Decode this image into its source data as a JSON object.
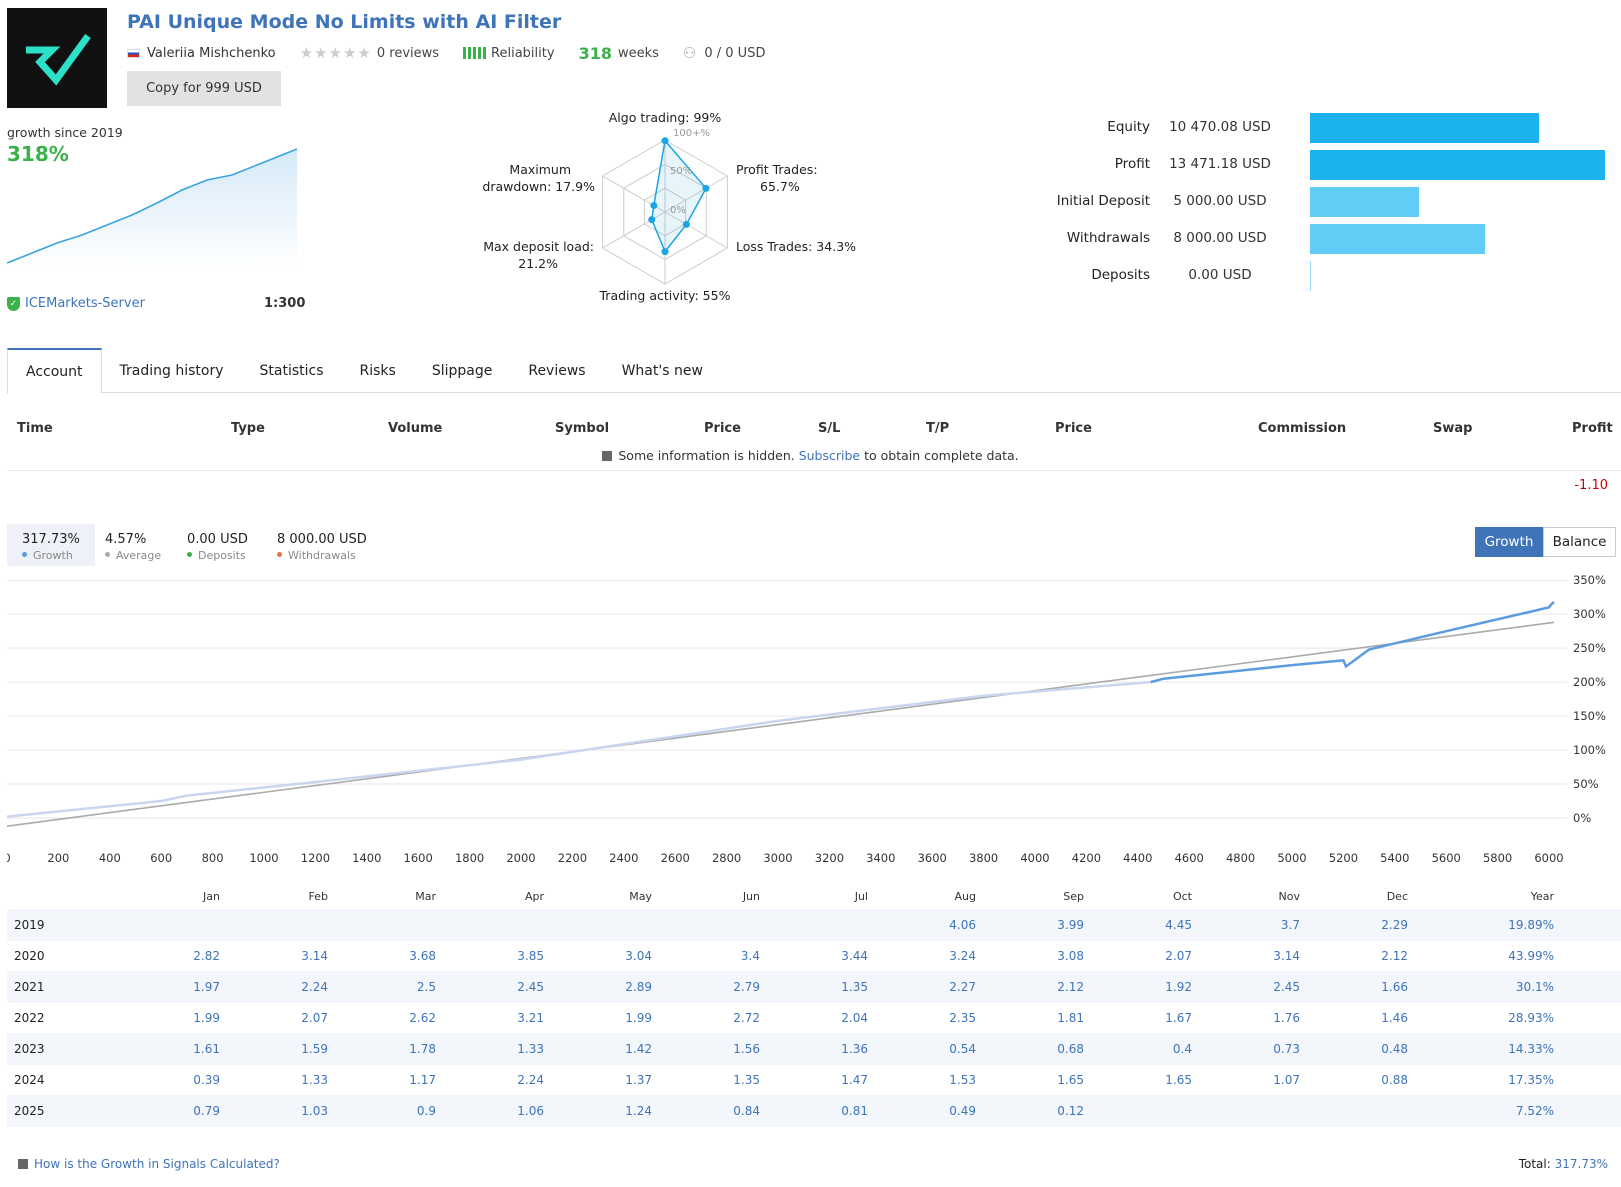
{
  "header": {
    "title": "PAI Unique Mode No Limits with AI Filter",
    "author": "Valeriia Mishchenko",
    "reviews": "0 reviews",
    "reliability": "Reliability",
    "weeks_num": "318",
    "weeks_label": "weeks",
    "subscribers": "0 / 0 USD",
    "copy_button": "Copy for 999 USD"
  },
  "growth_summary": {
    "label": "growth since 2019",
    "value": "318%",
    "server": "ICEMarkets-Server",
    "leverage": "1:300"
  },
  "radar": {
    "labels": {
      "algo": "Algo trading: 99%",
      "profit_1": "Profit Trades:",
      "profit_2": "65.7%",
      "loss": "Loss Trades: 34.3%",
      "activity": "Trading activity: 55%",
      "load_1": "Max deposit load:",
      "load_2": "21.2%",
      "dd_1": "Maximum",
      "dd_2": "drawdown: 17.9%"
    },
    "ticks": [
      "100+%",
      "50%",
      "0%"
    ],
    "values": [
      99,
      65.7,
      34.3,
      55,
      21.2,
      17.9
    ]
  },
  "stats": [
    {
      "label": "Equity",
      "value": "10 470.08 USD",
      "amount": 10470.08,
      "color": "#1ab2ef"
    },
    {
      "label": "Profit",
      "value": "13 471.18 USD",
      "amount": 13471.18,
      "color": "#1ab2ef"
    },
    {
      "label": "Initial Deposit",
      "value": "5 000.00 USD",
      "amount": 5000,
      "color": "#5fcdf5"
    },
    {
      "label": "Withdrawals",
      "value": "8 000.00 USD",
      "amount": 8000,
      "color": "#5fcdf5"
    },
    {
      "label": "Deposits",
      "value": "0.00 USD",
      "amount": 0,
      "color": "#5fcdf5"
    }
  ],
  "tabs": [
    "Account",
    "Trading history",
    "Statistics",
    "Risks",
    "Slippage",
    "Reviews",
    "What's new"
  ],
  "trades_table": {
    "headers": [
      "Time",
      "Type",
      "Volume",
      "Symbol",
      "Price",
      "S/L",
      "T/P",
      "Price",
      "Commission",
      "Swap",
      "Profit"
    ],
    "hidden_note_pre": "Some information is hidden.",
    "hidden_note_link": "Subscribe",
    "hidden_note_post": "to obtain complete data.",
    "profit_value": "-1.10"
  },
  "legend": [
    {
      "value": "317.73%",
      "label": "Growth",
      "color": "#5b9be0"
    },
    {
      "value": "4.57%",
      "label": "Average",
      "color": "#aaaaaa"
    },
    {
      "value": "0.00 USD",
      "label": "Deposits",
      "color": "#3bb14a"
    },
    {
      "value": "8 000.00 USD",
      "label": "Withdrawals",
      "color": "#e8704a"
    }
  ],
  "chart_toggle": {
    "growth": "Growth",
    "balance": "Balance"
  },
  "chart_data": {
    "type": "line",
    "x_ticks": [
      "0",
      "200",
      "400",
      "600",
      "800",
      "1000",
      "1200",
      "1400",
      "1600",
      "1800",
      "2000",
      "2200",
      "2400",
      "2600",
      "2800",
      "3000",
      "3200",
      "3400",
      "3600",
      "3800",
      "4000",
      "4200",
      "4400",
      "4600",
      "4800",
      "5000",
      "5200",
      "5400",
      "5600",
      "5800",
      "6000"
    ],
    "y_ticks": [
      "350%",
      "300%",
      "250%",
      "200%",
      "150%",
      "100%",
      "50%",
      "0%"
    ],
    "xlim": [
      0,
      6070
    ],
    "ylim": [
      -25,
      365
    ],
    "series": [
      {
        "name": "Growth",
        "x": [
          0,
          600,
          700,
          1200,
          2000,
          3000,
          3800,
          4450,
          4500,
          5000,
          5200,
          5210,
          5300,
          5600,
          6000,
          6010,
          6020
        ],
        "y": [
          2,
          25,
          33,
          53,
          86,
          143,
          180,
          200,
          205,
          225,
          232,
          223,
          248,
          275,
          310,
          315,
          318
        ]
      },
      {
        "name": "Average",
        "x": [
          0,
          6020
        ],
        "y": [
          -12,
          288
        ]
      }
    ]
  },
  "monthly": {
    "headers": [
      "Jan",
      "Feb",
      "Mar",
      "Apr",
      "May",
      "Jun",
      "Jul",
      "Aug",
      "Sep",
      "Oct",
      "Nov",
      "Dec",
      "Year"
    ],
    "rows": [
      {
        "year": "2019",
        "values": [
          "",
          "",
          "",
          "",
          "",
          "",
          "",
          "4.06",
          "3.99",
          "4.45",
          "3.7",
          "2.29",
          "19.89%"
        ]
      },
      {
        "year": "2020",
        "values": [
          "2.82",
          "3.14",
          "3.68",
          "3.85",
          "3.04",
          "3.4",
          "3.44",
          "3.24",
          "3.08",
          "2.07",
          "3.14",
          "2.12",
          "43.99%"
        ]
      },
      {
        "year": "2021",
        "values": [
          "1.97",
          "2.24",
          "2.5",
          "2.45",
          "2.89",
          "2.79",
          "1.35",
          "2.27",
          "2.12",
          "1.92",
          "2.45",
          "1.66",
          "30.1%"
        ]
      },
      {
        "year": "2022",
        "values": [
          "1.99",
          "2.07",
          "2.62",
          "3.21",
          "1.99",
          "2.72",
          "2.04",
          "2.35",
          "1.81",
          "1.67",
          "1.76",
          "1.46",
          "28.93%"
        ]
      },
      {
        "year": "2023",
        "values": [
          "1.61",
          "1.59",
          "1.78",
          "1.33",
          "1.42",
          "1.56",
          "1.36",
          "0.54",
          "0.68",
          "0.4",
          "0.73",
          "0.48",
          "14.33%"
        ]
      },
      {
        "year": "2024",
        "values": [
          "0.39",
          "1.33",
          "1.17",
          "2.24",
          "1.37",
          "1.35",
          "1.47",
          "1.53",
          "1.65",
          "1.65",
          "1.07",
          "0.88",
          "17.35%"
        ]
      },
      {
        "year": "2025",
        "values": [
          "0.79",
          "1.03",
          "0.9",
          "1.06",
          "1.24",
          "0.84",
          "0.81",
          "0.49",
          "0.12",
          "",
          "",
          "",
          "7.52%"
        ]
      }
    ]
  },
  "footer": {
    "link": "How is the Growth in Signals Calculated?",
    "total_label": "Total:",
    "total_value": "317.73%"
  }
}
